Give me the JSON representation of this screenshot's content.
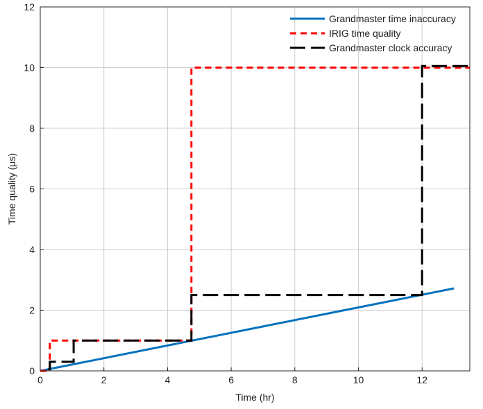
{
  "chart_data": {
    "type": "line",
    "title": "",
    "xlabel": "Time (hr)",
    "ylabel": "Time quality (μs)",
    "xlim": [
      0,
      13.5
    ],
    "ylim": [
      0,
      12
    ],
    "xticks": [
      0,
      2,
      4,
      6,
      8,
      10,
      12
    ],
    "yticks": [
      0,
      2,
      4,
      6,
      8,
      10,
      12
    ],
    "grid": true,
    "legend_position": "top-right",
    "series": [
      {
        "name": "Grandmaster time inaccuracy",
        "color": "#0072bd",
        "style": "solid",
        "x": [
          0,
          13.0
        ],
        "y": [
          0,
          2.72
        ]
      },
      {
        "name": "IRIG time quality",
        "color": "#ff0000",
        "style": "dashed",
        "x": [
          0,
          0.3,
          0.3,
          4.75,
          4.75,
          13.5
        ],
        "y": [
          0,
          0,
          1,
          1,
          10,
          10
        ]
      },
      {
        "name": "Grandmaster clock accuracy",
        "color": "#000000",
        "style": "dashed",
        "x": [
          0.25,
          0.3,
          0.3,
          1.05,
          1.05,
          4.75,
          4.75,
          12.0,
          12.0,
          13.5
        ],
        "y": [
          0.05,
          0.05,
          0.3,
          0.3,
          1,
          1,
          2.5,
          2.5,
          10.05,
          10.05
        ]
      }
    ]
  }
}
